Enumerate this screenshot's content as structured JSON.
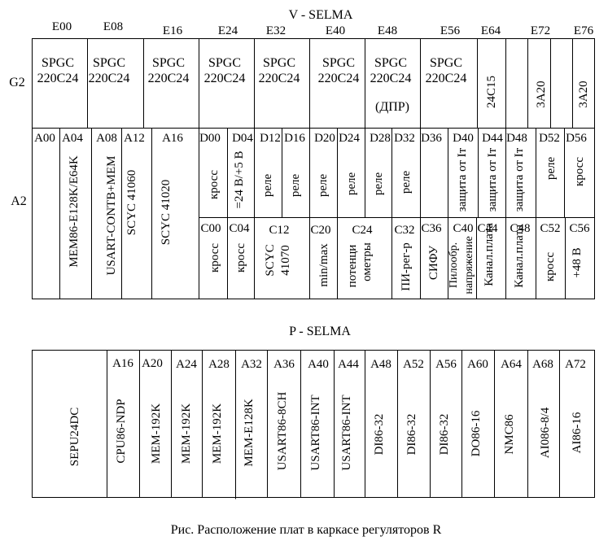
{
  "v_selma": {
    "title": "V - SELMA",
    "top_labels": [
      "E00",
      "E08",
      "E16",
      "E24",
      "E32",
      "E40",
      "E48",
      "E56",
      "E64",
      "E72",
      "E76"
    ],
    "row_labels": {
      "g2": "G2",
      "a2": "A2"
    },
    "g2": {
      "spgc": [
        "SPGC",
        "SPGC",
        "SPGC",
        "SPGC",
        "SPGC",
        "SPGC",
        "SPGC",
        "SPGC"
      ],
      "model": [
        "220C24",
        "220C24",
        "220C24",
        "220C24",
        "220C24",
        "220C24",
        "220C24",
        "220C24"
      ],
      "dpr_note": "(ДПР)",
      "vertical": [
        "24C15",
        "3A20",
        "3A20"
      ]
    },
    "a2_upper": {
      "labels": [
        "A00",
        "A04",
        "A08",
        "A12",
        "A16",
        "D00",
        "D04",
        "D12",
        "D16",
        "D20",
        "D24",
        "D28",
        "D32",
        "D36",
        "D40",
        "D44",
        "D48",
        "D52",
        "D56"
      ],
      "texts": [
        "MEM86-E128K/E64K",
        "USART-CONTB+MEM",
        "SCYC 41060",
        "SCYC 41020",
        "кросс",
        "=24 В/+5 В",
        "реле",
        "реле",
        "реле",
        "реле",
        "реле",
        "реле",
        "защита от Iт",
        "защита от Iт",
        "защита от Iт",
        "реле",
        "кросс"
      ]
    },
    "a2_lower": {
      "labels": [
        "C00",
        "C04",
        "C12",
        "C20",
        "C24",
        "C32",
        "C36",
        "C40",
        "C44",
        "C48",
        "C52",
        "C56"
      ],
      "texts": [
        "кросс",
        "кросс",
        "SCYC",
        "41070",
        "min/max",
        "потенци",
        "ометры",
        "ПИ-рег-р",
        "СИФУ",
        "Пилообр.",
        "напряжение",
        "Канал.плата",
        "Канал.плата",
        "кросс",
        "+48 В"
      ]
    }
  },
  "p_selma": {
    "title": "P - SELMA",
    "labels": [
      "A16",
      "A20",
      "A24",
      "A28",
      "A32",
      "A36",
      "A40",
      "A44",
      "A48",
      "A52",
      "A56",
      "A60",
      "A64",
      "A68",
      "A72"
    ],
    "boards": [
      "SEPU24DC",
      "CPU86-NDP",
      "MEM-192K",
      "MEM-192K",
      "MEM-192K",
      "MEM-E128K",
      "USART86-8CH",
      "USART86-INT",
      "USART86-INT",
      "DI86-32",
      "DI86-32",
      "DI86-32",
      "DO86-16",
      "NMC86",
      "AI086-8/4",
      "AI86-16"
    ]
  },
  "caption": "Рис.  Расположение плат в каркасе регуляторов R"
}
